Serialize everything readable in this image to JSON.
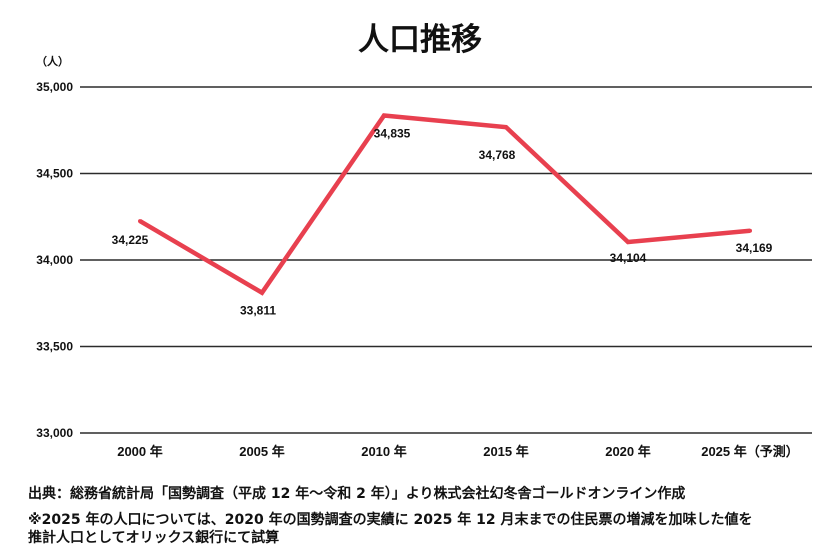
{
  "chart_data": {
    "type": "line",
    "title": "人口推移",
    "ylabel": "（人）",
    "categories": [
      "2000 年",
      "2005 年",
      "2010 年",
      "2015 年",
      "2020 年",
      "2025 年（予測）"
    ],
    "series": [
      {
        "values": [
          34225,
          33811,
          34835,
          34768,
          34104,
          34169
        ],
        "data_labels": [
          "34,225",
          "33,811",
          "34,835",
          "34,768",
          "34,104",
          "34,169"
        ],
        "color": "#e8404f"
      }
    ],
    "yticks": [
      {
        "value": 35000,
        "label": "35,000"
      },
      {
        "value": 34500,
        "label": "34,500"
      },
      {
        "value": 34000,
        "label": "34,000"
      },
      {
        "value": 33500,
        "label": "33,500"
      },
      {
        "value": 33000,
        "label": "33,000"
      }
    ],
    "ylim": [
      33000,
      35000
    ],
    "grid": true,
    "legend": false
  },
  "footer": {
    "source": "出典：総務省統計局「国勢調査（平成 12 年〜令和 2 年）」より株式会社幻冬舎ゴールドオンライン作成",
    "note": [
      "※2025 年の人口については、2020 年の国勢調査の実績に 2025 年 12 月末までの住民票の増減を加味した値を",
      "推計人口としてオリックス銀行にて試算"
    ]
  },
  "colors": {
    "gridline": "#2b2b2b",
    "text": "#111111"
  }
}
